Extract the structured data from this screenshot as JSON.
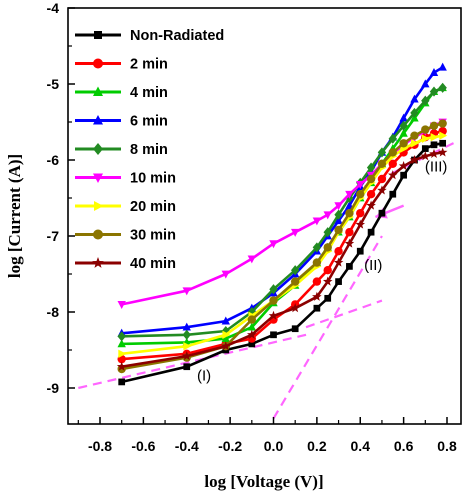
{
  "chart_data": {
    "type": "line",
    "xlabel": "log [Voltage (V)]",
    "ylabel": "log [Current (A)]",
    "xlim": [
      -0.9,
      0.85
    ],
    "ylim": [
      -9.5,
      -4
    ],
    "xticks": [
      -0.8,
      -0.6,
      -0.4,
      -0.2,
      0.0,
      0.2,
      0.4,
      0.6,
      0.8
    ],
    "xtick_labels": [
      "-0.8",
      "-0.6",
      "-0.4",
      "-0.2",
      "0.0",
      "0.2",
      "0.4",
      "0.6",
      "0.8"
    ],
    "yticks": [
      -9,
      -8,
      -7,
      -6,
      -5,
      -4
    ],
    "ytick_labels": [
      "-9",
      "-8",
      "-7",
      "-6",
      "-5",
      "-4"
    ],
    "legend_position": "top-left",
    "series": [
      {
        "name": "Non-Radiated",
        "color": "#000000",
        "marker": "square",
        "points": [
          [
            -0.7,
            -8.92
          ],
          [
            -0.4,
            -8.72
          ],
          [
            -0.22,
            -8.5
          ],
          [
            -0.1,
            -8.42
          ],
          [
            0.0,
            -8.3
          ],
          [
            0.1,
            -8.22
          ],
          [
            0.2,
            -7.95
          ],
          [
            0.25,
            -7.82
          ],
          [
            0.3,
            -7.6
          ],
          [
            0.35,
            -7.4
          ],
          [
            0.4,
            -7.2
          ],
          [
            0.45,
            -6.95
          ],
          [
            0.5,
            -6.7
          ],
          [
            0.55,
            -6.45
          ],
          [
            0.6,
            -6.2
          ],
          [
            0.65,
            -6.0
          ],
          [
            0.7,
            -5.85
          ],
          [
            0.74,
            -5.8
          ],
          [
            0.78,
            -5.78
          ]
        ]
      },
      {
        "name": "2 min",
        "color": "#ff0000",
        "marker": "circle",
        "points": [
          [
            -0.7,
            -8.62
          ],
          [
            -0.4,
            -8.55
          ],
          [
            -0.22,
            -8.42
          ],
          [
            -0.1,
            -8.35
          ],
          [
            0.0,
            -8.1
          ],
          [
            0.1,
            -7.9
          ],
          [
            0.2,
            -7.6
          ],
          [
            0.25,
            -7.45
          ],
          [
            0.3,
            -7.2
          ],
          [
            0.35,
            -6.95
          ],
          [
            0.4,
            -6.7
          ],
          [
            0.45,
            -6.45
          ],
          [
            0.5,
            -6.25
          ],
          [
            0.55,
            -6.05
          ],
          [
            0.6,
            -5.9
          ],
          [
            0.65,
            -5.8
          ],
          [
            0.7,
            -5.7
          ],
          [
            0.74,
            -5.65
          ],
          [
            0.78,
            -5.62
          ]
        ]
      },
      {
        "name": "4 min",
        "color": "#00cc00",
        "marker": "triangle-up",
        "points": [
          [
            -0.7,
            -8.42
          ],
          [
            -0.4,
            -8.4
          ],
          [
            -0.22,
            -8.35
          ],
          [
            -0.1,
            -8.2
          ],
          [
            0.0,
            -7.88
          ],
          [
            0.1,
            -7.65
          ],
          [
            0.2,
            -7.35
          ],
          [
            0.25,
            -7.15
          ],
          [
            0.3,
            -6.95
          ],
          [
            0.35,
            -6.75
          ],
          [
            0.4,
            -6.5
          ],
          [
            0.45,
            -6.3
          ],
          [
            0.5,
            -6.05
          ],
          [
            0.55,
            -5.85
          ],
          [
            0.6,
            -5.65
          ],
          [
            0.65,
            -5.45
          ],
          [
            0.7,
            -5.25
          ],
          [
            0.74,
            -5.1
          ],
          [
            0.78,
            -5.05
          ]
        ]
      },
      {
        "name": "6 min",
        "color": "#0000ff",
        "marker": "triangle-up",
        "points": [
          [
            -0.7,
            -8.28
          ],
          [
            -0.4,
            -8.2
          ],
          [
            -0.22,
            -8.12
          ],
          [
            -0.1,
            -7.95
          ],
          [
            0.0,
            -7.75
          ],
          [
            0.1,
            -7.5
          ],
          [
            0.2,
            -7.2
          ],
          [
            0.25,
            -7.0
          ],
          [
            0.3,
            -6.8
          ],
          [
            0.35,
            -6.6
          ],
          [
            0.4,
            -6.35
          ],
          [
            0.45,
            -6.15
          ],
          [
            0.5,
            -5.9
          ],
          [
            0.55,
            -5.7
          ],
          [
            0.6,
            -5.45
          ],
          [
            0.65,
            -5.2
          ],
          [
            0.7,
            -5.0
          ],
          [
            0.74,
            -4.85
          ],
          [
            0.78,
            -4.78
          ]
        ]
      },
      {
        "name": "8 min",
        "color": "#228b22",
        "marker": "diamond",
        "points": [
          [
            -0.7,
            -8.32
          ],
          [
            -0.4,
            -8.3
          ],
          [
            -0.22,
            -8.25
          ],
          [
            -0.1,
            -8.0
          ],
          [
            0.0,
            -7.7
          ],
          [
            0.1,
            -7.45
          ],
          [
            0.2,
            -7.15
          ],
          [
            0.25,
            -6.95
          ],
          [
            0.3,
            -6.72
          ],
          [
            0.35,
            -6.5
          ],
          [
            0.4,
            -6.3
          ],
          [
            0.45,
            -6.1
          ],
          [
            0.5,
            -5.9
          ],
          [
            0.55,
            -5.72
          ],
          [
            0.6,
            -5.55
          ],
          [
            0.65,
            -5.38
          ],
          [
            0.7,
            -5.22
          ],
          [
            0.74,
            -5.1
          ],
          [
            0.78,
            -5.05
          ]
        ]
      },
      {
        "name": "10 min",
        "color": "#ff00ff",
        "marker": "triangle-down",
        "points": [
          [
            -0.7,
            -7.9
          ],
          [
            -0.4,
            -7.72
          ],
          [
            -0.22,
            -7.5
          ],
          [
            -0.1,
            -7.3
          ],
          [
            0.0,
            -7.1
          ],
          [
            0.1,
            -6.95
          ],
          [
            0.2,
            -6.8
          ],
          [
            0.25,
            -6.72
          ],
          [
            0.3,
            -6.6
          ],
          [
            0.35,
            -6.45
          ],
          [
            0.4,
            -6.32
          ],
          [
            0.45,
            -6.2
          ],
          [
            0.5,
            -6.05
          ],
          [
            0.55,
            -5.92
          ],
          [
            0.6,
            -5.8
          ],
          [
            0.65,
            -5.7
          ],
          [
            0.7,
            -5.62
          ],
          [
            0.74,
            -5.55
          ],
          [
            0.78,
            -5.5
          ]
        ]
      },
      {
        "name": "20 min",
        "color": "#ffff00",
        "marker": "triangle-right",
        "points": [
          [
            -0.7,
            -8.55
          ],
          [
            -0.4,
            -8.45
          ],
          [
            -0.22,
            -8.3
          ],
          [
            -0.1,
            -8.05
          ],
          [
            0.0,
            -7.85
          ],
          [
            0.1,
            -7.65
          ],
          [
            0.2,
            -7.4
          ],
          [
            0.25,
            -7.2
          ],
          [
            0.3,
            -6.95
          ],
          [
            0.35,
            -6.75
          ],
          [
            0.4,
            -6.5
          ],
          [
            0.45,
            -6.3
          ],
          [
            0.5,
            -6.1
          ],
          [
            0.55,
            -5.95
          ],
          [
            0.6,
            -5.85
          ],
          [
            0.65,
            -5.78
          ],
          [
            0.7,
            -5.72
          ],
          [
            0.74,
            -5.7
          ],
          [
            0.78,
            -5.68
          ]
        ]
      },
      {
        "name": "30 min",
        "color": "#8b7500",
        "marker": "circle",
        "points": [
          [
            -0.7,
            -8.75
          ],
          [
            -0.4,
            -8.6
          ],
          [
            -0.22,
            -8.45
          ],
          [
            -0.1,
            -8.1
          ],
          [
            0.0,
            -7.85
          ],
          [
            0.1,
            -7.6
          ],
          [
            0.2,
            -7.35
          ],
          [
            0.25,
            -7.15
          ],
          [
            0.3,
            -6.92
          ],
          [
            0.35,
            -6.7
          ],
          [
            0.4,
            -6.45
          ],
          [
            0.45,
            -6.25
          ],
          [
            0.5,
            -6.05
          ],
          [
            0.55,
            -5.9
          ],
          [
            0.6,
            -5.78
          ],
          [
            0.65,
            -5.68
          ],
          [
            0.7,
            -5.6
          ],
          [
            0.74,
            -5.55
          ],
          [
            0.78,
            -5.52
          ]
        ]
      },
      {
        "name": "40 min",
        "color": "#8b0000",
        "marker": "star",
        "points": [
          [
            -0.7,
            -8.72
          ],
          [
            -0.4,
            -8.58
          ],
          [
            -0.22,
            -8.45
          ],
          [
            -0.1,
            -8.3
          ],
          [
            0.0,
            -8.05
          ],
          [
            0.1,
            -7.95
          ],
          [
            0.2,
            -7.8
          ],
          [
            0.25,
            -7.6
          ],
          [
            0.3,
            -7.35
          ],
          [
            0.35,
            -7.1
          ],
          [
            0.4,
            -6.85
          ],
          [
            0.45,
            -6.6
          ],
          [
            0.5,
            -6.4
          ],
          [
            0.55,
            -6.2
          ],
          [
            0.6,
            -6.08
          ],
          [
            0.65,
            -6.0
          ],
          [
            0.7,
            -5.95
          ],
          [
            0.74,
            -5.92
          ],
          [
            0.78,
            -5.9
          ]
        ]
      }
    ],
    "fit_lines": [
      {
        "color": "#ff66ff",
        "dash": true,
        "points": [
          [
            -0.9,
            -9.0
          ],
          [
            0.15,
            -8.3
          ]
        ]
      },
      {
        "color": "#ff66ff",
        "dash": true,
        "points": [
          [
            0.0,
            -9.4
          ],
          [
            0.5,
            -7.0
          ]
        ]
      },
      {
        "color": "#ff66ff",
        "dash": true,
        "points": [
          [
            0.15,
            -8.2
          ],
          [
            0.5,
            -7.85
          ]
        ]
      },
      {
        "color": "#ff66ff",
        "dash": true,
        "points": [
          [
            0.42,
            -6.35
          ],
          [
            0.85,
            -5.75
          ]
        ]
      }
    ],
    "annotations": [
      {
        "text": "(I)",
        "x": -0.32,
        "y": -8.9
      },
      {
        "text": "(II)",
        "x": 0.46,
        "y": -7.45
      },
      {
        "text": "(III)",
        "x": 0.75,
        "y": -6.15
      }
    ],
    "arrow": {
      "color": "#ff66ff",
      "from": [
        0.6,
        -6.6
      ],
      "to": [
        0.47,
        -6.75
      ]
    }
  }
}
